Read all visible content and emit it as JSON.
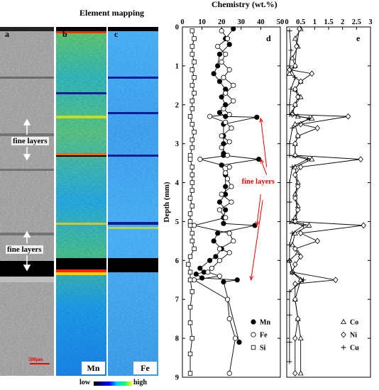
{
  "figure": {
    "mapping_title": "Element mapping",
    "chemistry_title": "Chemistry (wt.%)",
    "panel_a": {
      "letter": "a",
      "annotations": [
        "fine layers",
        "fine layers"
      ],
      "scalebar_label": "500μm"
    },
    "panel_b": {
      "letter": "b",
      "label": "Mn"
    },
    "panel_c": {
      "letter": "c",
      "label": "Fe"
    },
    "colorbar": {
      "low": "low",
      "high": "high"
    }
  },
  "chart_data": [
    {
      "panel": "d",
      "type": "line",
      "xlabel": "Chemistry (wt.%)",
      "ylabel": "Depth (mm)",
      "xlim": [
        0,
        50
      ],
      "ylim": [
        0,
        9
      ],
      "xticks": [
        "0",
        "10",
        "20",
        "30",
        "40",
        "50"
      ],
      "yticks": [
        "0",
        "1",
        "2",
        "3",
        "4",
        "5",
        "6",
        "7",
        "8",
        "9"
      ],
      "annotation": "fine layers",
      "legend": [
        "Mn",
        "Fe",
        "Si"
      ],
      "legend_position": "bottom-right",
      "series": [
        {
          "name": "Mn",
          "marker": "filled-circle",
          "points": [
            [
              26,
              0.05
            ],
            [
              22,
              0.3
            ],
            [
              24,
              0.45
            ],
            [
              19,
              0.7
            ],
            [
              18,
              1.0
            ],
            [
              16,
              1.2
            ],
            [
              19,
              1.4
            ],
            [
              22,
              1.6
            ],
            [
              20,
              1.8
            ],
            [
              22,
              2.0
            ],
            [
              19,
              2.2
            ],
            [
              22,
              2.3
            ],
            [
              38,
              2.32
            ],
            [
              21,
              2.5
            ],
            [
              21,
              2.8
            ],
            [
              21,
              3.0
            ],
            [
              21,
              3.25
            ],
            [
              21,
              3.3
            ],
            [
              39,
              3.4
            ],
            [
              20,
              3.55
            ],
            [
              22,
              3.8
            ],
            [
              22,
              4.1
            ],
            [
              22,
              4.3
            ],
            [
              19,
              4.5
            ],
            [
              22,
              4.7
            ],
            [
              21,
              4.9
            ],
            [
              21,
              5.05
            ],
            [
              37,
              5.1
            ],
            [
              18,
              5.3
            ],
            [
              16,
              5.5
            ],
            [
              20,
              5.7
            ],
            [
              17,
              5.9
            ],
            [
              14,
              6.0
            ],
            [
              9,
              6.2
            ],
            [
              11,
              6.3
            ],
            [
              7,
              6.35
            ],
            [
              10,
              6.45
            ],
            [
              28,
              6.5
            ],
            [
              21,
              6.55
            ],
            [
              29,
              8.1
            ]
          ]
        },
        {
          "name": "Fe",
          "marker": "open-circle",
          "points": [
            [
              20,
              0.1
            ],
            [
              23,
              0.3
            ],
            [
              18,
              0.5
            ],
            [
              22,
              0.7
            ],
            [
              20,
              0.9
            ],
            [
              24,
              1.1
            ],
            [
              21,
              1.3
            ],
            [
              26,
              1.5
            ],
            [
              22,
              1.7
            ],
            [
              26,
              1.9
            ],
            [
              21,
              2.1
            ],
            [
              24,
              2.25
            ],
            [
              14,
              2.3
            ],
            [
              22,
              2.45
            ],
            [
              25,
              2.6
            ],
            [
              20,
              2.8
            ],
            [
              24,
              2.95
            ],
            [
              20,
              3.1
            ],
            [
              23,
              3.3
            ],
            [
              9,
              3.4
            ],
            [
              24,
              3.6
            ],
            [
              22,
              3.75
            ],
            [
              23,
              3.9
            ],
            [
              25,
              4.1
            ],
            [
              20,
              4.3
            ],
            [
              25,
              4.5
            ],
            [
              19,
              4.7
            ],
            [
              22,
              4.9
            ],
            [
              6,
              5.1
            ],
            [
              24,
              5.3
            ],
            [
              26,
              5.5
            ],
            [
              19,
              5.7
            ],
            [
              24,
              5.8
            ],
            [
              19,
              6.0
            ],
            [
              15,
              6.2
            ],
            [
              13,
              6.3
            ],
            [
              19,
              6.4
            ],
            [
              6,
              6.5
            ],
            [
              23,
              7.0
            ],
            [
              24,
              7.5
            ],
            [
              27,
              8.0
            ],
            [
              24,
              8.9
            ]
          ]
        },
        {
          "name": "Si",
          "marker": "open-square",
          "points": [
            [
              5,
              0.1
            ],
            [
              6,
              0.3
            ],
            [
              5,
              0.5
            ],
            [
              5,
              0.7
            ],
            [
              6,
              0.9
            ],
            [
              5,
              1.1
            ],
            [
              6,
              1.3
            ],
            [
              5,
              1.5
            ],
            [
              6,
              1.7
            ],
            [
              5,
              1.9
            ],
            [
              5,
              2.1
            ],
            [
              4,
              2.3
            ],
            [
              5,
              2.5
            ],
            [
              6,
              2.7
            ],
            [
              5,
              2.9
            ],
            [
              5,
              3.1
            ],
            [
              4,
              3.3
            ],
            [
              4,
              3.4
            ],
            [
              5,
              3.6
            ],
            [
              5,
              3.8
            ],
            [
              5,
              4.0
            ],
            [
              5,
              4.2
            ],
            [
              4,
              4.4
            ],
            [
              5,
              4.6
            ],
            [
              4,
              4.8
            ],
            [
              4,
              5.0
            ],
            [
              4,
              5.1
            ],
            [
              5,
              5.3
            ],
            [
              5,
              5.5
            ],
            [
              6,
              5.7
            ],
            [
              4,
              5.9
            ],
            [
              3,
              6.1
            ],
            [
              4,
              6.3
            ],
            [
              4,
              6.5
            ],
            [
              5,
              6.8
            ],
            [
              4,
              7.2
            ],
            [
              4,
              7.6
            ],
            [
              5,
              8.0
            ],
            [
              4,
              8.4
            ],
            [
              4,
              8.9
            ]
          ]
        }
      ]
    },
    {
      "panel": "e",
      "type": "line",
      "xlim": [
        0,
        3
      ],
      "ylim": [
        0,
        9
      ],
      "xticks": [
        "0",
        "0.5",
        "1",
        "1.5",
        "2",
        "2.5",
        "3"
      ],
      "legend": [
        "Co",
        "Ni",
        "Cu"
      ],
      "legend_position": "bottom-right",
      "series": [
        {
          "name": "Co",
          "marker": "open-triangle",
          "points": [
            [
              0.5,
              0.05
            ],
            [
              0.3,
              0.3
            ],
            [
              0.4,
              0.5
            ],
            [
              0.2,
              0.8
            ],
            [
              0.3,
              1.0
            ],
            [
              0.1,
              1.2
            ],
            [
              0.5,
              1.4
            ],
            [
              0.3,
              1.6
            ],
            [
              0.5,
              1.8
            ],
            [
              0.3,
              2.0
            ],
            [
              0.2,
              2.2
            ],
            [
              0.4,
              2.3
            ],
            [
              0.9,
              2.35
            ],
            [
              0.3,
              2.5
            ],
            [
              0.4,
              2.8
            ],
            [
              0.3,
              3.0
            ],
            [
              0.3,
              3.3
            ],
            [
              0.9,
              3.4
            ],
            [
              0.3,
              3.6
            ],
            [
              0.4,
              4.0
            ],
            [
              0.3,
              4.3
            ],
            [
              0.4,
              4.6
            ],
            [
              0.3,
              4.9
            ],
            [
              0.2,
              5.0
            ],
            [
              0.8,
              5.1
            ],
            [
              0.3,
              5.3
            ],
            [
              0.2,
              5.6
            ],
            [
              0.4,
              5.8
            ],
            [
              0.1,
              6.0
            ],
            [
              0.2,
              6.3
            ],
            [
              0.5,
              6.5
            ],
            [
              0.3,
              7.0
            ],
            [
              0.4,
              7.5
            ],
            [
              0.5,
              8.0
            ],
            [
              0.5,
              8.9
            ]
          ]
        },
        {
          "name": "Ni",
          "marker": "open-diamond",
          "points": [
            [
              0.45,
              0.05
            ],
            [
              0.35,
              0.5
            ],
            [
              0.3,
              1.0
            ],
            [
              0.1,
              1.1
            ],
            [
              0.9,
              1.2
            ],
            [
              0.5,
              1.4
            ],
            [
              0.3,
              1.6
            ],
            [
              0.4,
              1.8
            ],
            [
              0.3,
              2.0
            ],
            [
              0.2,
              2.25
            ],
            [
              2.2,
              2.3
            ],
            [
              0.5,
              2.5
            ],
            [
              1.1,
              2.6
            ],
            [
              0.4,
              2.8
            ],
            [
              0.3,
              3.0
            ],
            [
              0.3,
              3.3
            ],
            [
              2.65,
              3.4
            ],
            [
              0.5,
              3.6
            ],
            [
              0.3,
              3.8
            ],
            [
              0.4,
              4.1
            ],
            [
              0.3,
              4.4
            ],
            [
              0.4,
              4.7
            ],
            [
              0.3,
              5.0
            ],
            [
              2.75,
              5.1
            ],
            [
              0.5,
              5.3
            ],
            [
              1.1,
              5.5
            ],
            [
              0.3,
              5.7
            ],
            [
              0.5,
              5.9
            ],
            [
              0.3,
              6.1
            ],
            [
              0.2,
              6.3
            ],
            [
              1.75,
              6.5
            ],
            [
              0.3,
              6.6
            ],
            [
              0.3,
              7.0
            ],
            [
              0.4,
              7.5
            ],
            [
              0.3,
              8.0
            ],
            [
              0.3,
              8.9
            ]
          ]
        },
        {
          "name": "Cu",
          "marker": "plus",
          "points": [
            [
              0.1,
              0.1
            ],
            [
              0.15,
              0.6
            ],
            [
              0.1,
              1.0
            ],
            [
              0.3,
              1.3
            ],
            [
              0.15,
              1.6
            ],
            [
              0.1,
              2.0
            ],
            [
              0.1,
              2.25
            ],
            [
              0.8,
              2.35
            ],
            [
              0.2,
              2.6
            ],
            [
              0.1,
              3.0
            ],
            [
              0.1,
              3.3
            ],
            [
              0.75,
              3.4
            ],
            [
              0.2,
              3.6
            ],
            [
              0.1,
              4.0
            ],
            [
              0.1,
              4.5
            ],
            [
              0.1,
              5.0
            ],
            [
              0.6,
              5.1
            ],
            [
              0.2,
              5.3
            ],
            [
              0.1,
              5.6
            ],
            [
              0.1,
              6.0
            ],
            [
              0.2,
              6.3
            ],
            [
              0.6,
              6.5
            ],
            [
              0.1,
              6.8
            ],
            [
              0.1,
              7.4
            ],
            [
              0.1,
              8.1
            ],
            [
              0.1,
              8.6
            ]
          ]
        }
      ]
    }
  ]
}
